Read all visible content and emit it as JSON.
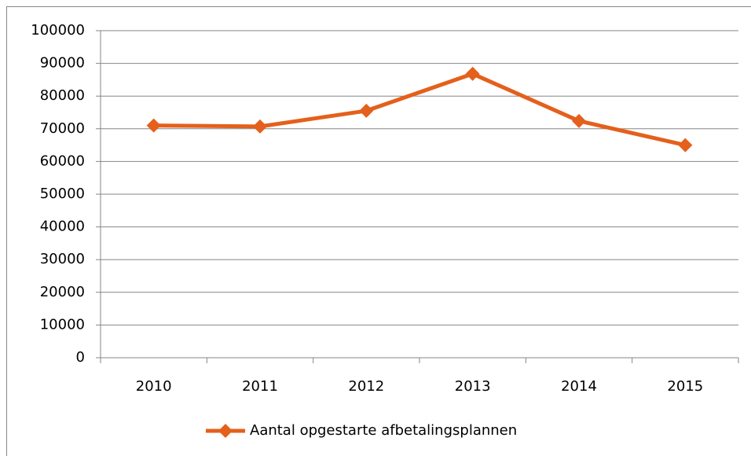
{
  "chart_data": {
    "type": "line",
    "categories": [
      "2010",
      "2011",
      "2012",
      "2013",
      "2014",
      "2015"
    ],
    "series": [
      {
        "name": "Aantal opgestarte afbetalingsplannen",
        "color": "#e4601c",
        "values": [
          71000,
          70700,
          75500,
          86800,
          72400,
          65000
        ]
      }
    ],
    "ylim": [
      0,
      100000
    ],
    "yticks": [
      0,
      10000,
      20000,
      30000,
      40000,
      50000,
      60000,
      70000,
      80000,
      90000,
      100000
    ],
    "grid": true,
    "legend": "bottom"
  }
}
